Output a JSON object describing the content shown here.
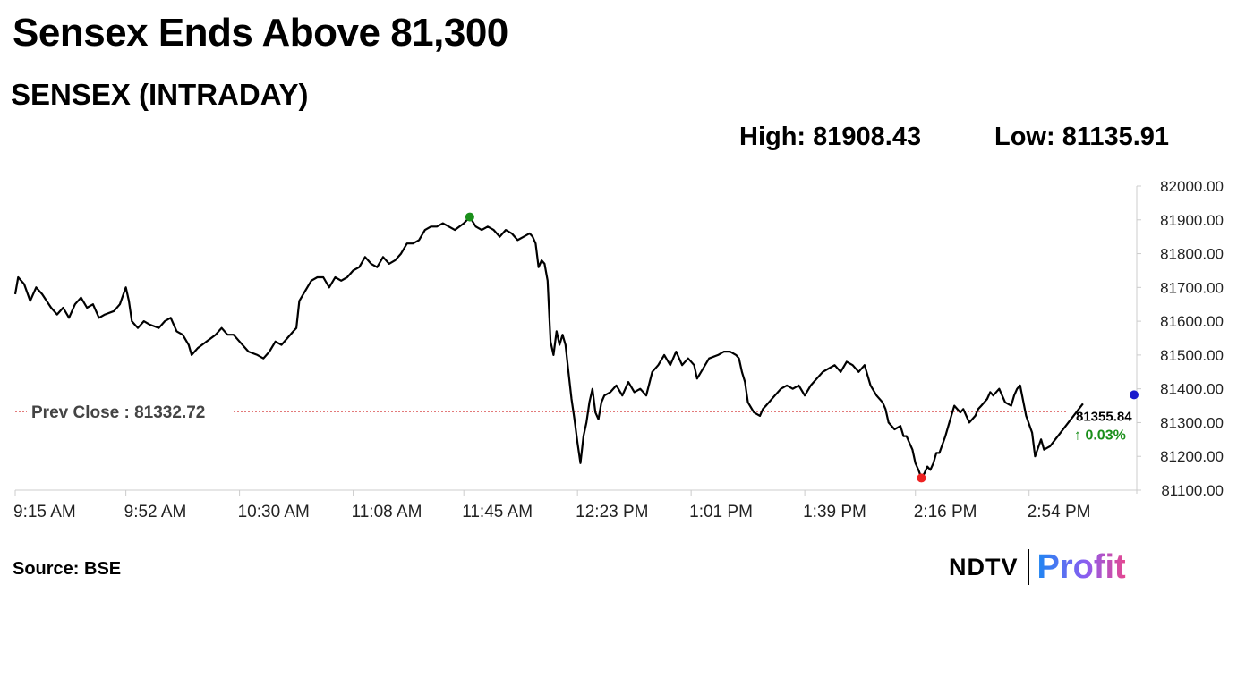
{
  "headline": "Sensex Ends Above 81,300",
  "subtitle": "SENSEX (INTRADAY)",
  "high_label": "High: 81908.43",
  "low_label": "Low: 81135.91",
  "source": "Source: BSE",
  "logo": {
    "ndtv": "NDTV",
    "profit": "Profit"
  },
  "colors": {
    "line": "#000000",
    "prev_close": "#d22b2b",
    "high_marker": "#1a8f1a",
    "low_marker": "#ee2222",
    "last_marker": "#1a1acc",
    "change_up": "#1a8f1a"
  },
  "chart_data": {
    "type": "line",
    "title": "SENSEX (INTRADAY)",
    "x_ticks": [
      "9:15 AM",
      "9:52 AM",
      "10:30 AM",
      "11:08 AM",
      "11:45 AM",
      "12:23 PM",
      "1:01 PM",
      "1:39 PM",
      "2:16 PM",
      "2:54 PM"
    ],
    "x_tick_minutes": [
      555,
      592,
      630,
      668,
      705,
      743,
      781,
      819,
      856,
      894
    ],
    "x_range_minutes": [
      555,
      930
    ],
    "y_ticks": [
      82000,
      81900,
      81800,
      81700,
      81600,
      81500,
      81400,
      81300,
      81200,
      81100
    ],
    "y_tick_labels": [
      "82000.00",
      "81900.00",
      "81800.00",
      "81700.00",
      "81600.00",
      "81500.00",
      "81400.00",
      "81300.00",
      "81200.00",
      "81100.00"
    ],
    "ylim": [
      81100,
      82000
    ],
    "prev_close": 81332.72,
    "prev_close_label": "Prev Close : 81332.72",
    "high": {
      "time": 707,
      "value": 81908.43
    },
    "low": {
      "time": 858,
      "value": 81135.91
    },
    "last": {
      "time": 912,
      "value": 81355.84,
      "label": "81355.84",
      "change_label": "↑ 0.03%"
    },
    "series": [
      {
        "points": [
          [
            555,
            81680
          ],
          [
            556,
            81730
          ],
          [
            558,
            81710
          ],
          [
            560,
            81660
          ],
          [
            562,
            81700
          ],
          [
            564,
            81680
          ],
          [
            567,
            81640
          ],
          [
            569,
            81620
          ],
          [
            571,
            81640
          ],
          [
            573,
            81610
          ],
          [
            575,
            81650
          ],
          [
            577,
            81670
          ],
          [
            579,
            81640
          ],
          [
            581,
            81650
          ],
          [
            583,
            81610
          ],
          [
            585,
            81620
          ],
          [
            588,
            81630
          ],
          [
            590,
            81650
          ],
          [
            592,
            81700
          ],
          [
            593,
            81660
          ],
          [
            594,
            81600
          ],
          [
            596,
            81580
          ],
          [
            598,
            81600
          ],
          [
            600,
            81590
          ],
          [
            603,
            81580
          ],
          [
            605,
            81600
          ],
          [
            607,
            81610
          ],
          [
            609,
            81570
          ],
          [
            611,
            81560
          ],
          [
            613,
            81530
          ],
          [
            614,
            81500
          ],
          [
            616,
            81520
          ],
          [
            619,
            81540
          ],
          [
            622,
            81560
          ],
          [
            624,
            81580
          ],
          [
            626,
            81560
          ],
          [
            628,
            81560
          ],
          [
            630,
            81540
          ],
          [
            633,
            81510
          ],
          [
            636,
            81500
          ],
          [
            638,
            81490
          ],
          [
            640,
            81510
          ],
          [
            642,
            81540
          ],
          [
            644,
            81530
          ],
          [
            646,
            81550
          ],
          [
            648,
            81570
          ],
          [
            649,
            81580
          ],
          [
            650,
            81660
          ],
          [
            652,
            81690
          ],
          [
            654,
            81720
          ],
          [
            656,
            81730
          ],
          [
            658,
            81730
          ],
          [
            660,
            81700
          ],
          [
            662,
            81730
          ],
          [
            664,
            81720
          ],
          [
            666,
            81730
          ],
          [
            668,
            81750
          ],
          [
            670,
            81760
          ],
          [
            672,
            81790
          ],
          [
            674,
            81770
          ],
          [
            676,
            81760
          ],
          [
            678,
            81790
          ],
          [
            680,
            81770
          ],
          [
            682,
            81780
          ],
          [
            684,
            81800
          ],
          [
            686,
            81830
          ],
          [
            688,
            81830
          ],
          [
            690,
            81840
          ],
          [
            692,
            81870
          ],
          [
            694,
            81880
          ],
          [
            696,
            81880
          ],
          [
            698,
            81890
          ],
          [
            700,
            81880
          ],
          [
            702,
            81870
          ],
          [
            705,
            81890
          ],
          [
            707,
            81908.43
          ],
          [
            709,
            81880
          ],
          [
            711,
            81870
          ],
          [
            713,
            81880
          ],
          [
            715,
            81870
          ],
          [
            717,
            81850
          ],
          [
            719,
            81870
          ],
          [
            721,
            81860
          ],
          [
            723,
            81840
          ],
          [
            725,
            81850
          ],
          [
            727,
            81860
          ],
          [
            728,
            81850
          ],
          [
            729,
            81830
          ],
          [
            730,
            81760
          ],
          [
            731,
            81780
          ],
          [
            732,
            81770
          ],
          [
            733,
            81720
          ],
          [
            734,
            81540
          ],
          [
            735,
            81500
          ],
          [
            736,
            81570
          ],
          [
            737,
            81530
          ],
          [
            738,
            81560
          ],
          [
            739,
            81530
          ],
          [
            740,
            81450
          ],
          [
            741,
            81370
          ],
          [
            742,
            81310
          ],
          [
            743,
            81240
          ],
          [
            744,
            81180
          ],
          [
            745,
            81260
          ],
          [
            746,
            81300
          ],
          [
            747,
            81360
          ],
          [
            748,
            81400
          ],
          [
            749,
            81330
          ],
          [
            750,
            81310
          ],
          [
            751,
            81360
          ],
          [
            752,
            81380
          ],
          [
            754,
            81390
          ],
          [
            756,
            81410
          ],
          [
            758,
            81380
          ],
          [
            760,
            81420
          ],
          [
            762,
            81390
          ],
          [
            764,
            81400
          ],
          [
            766,
            81380
          ],
          [
            768,
            81450
          ],
          [
            770,
            81470
          ],
          [
            772,
            81500
          ],
          [
            774,
            81470
          ],
          [
            776,
            81510
          ],
          [
            778,
            81470
          ],
          [
            780,
            81490
          ],
          [
            782,
            81470
          ],
          [
            783,
            81430
          ],
          [
            785,
            81460
          ],
          [
            787,
            81490
          ],
          [
            790,
            81500
          ],
          [
            792,
            81510
          ],
          [
            794,
            81510
          ],
          [
            796,
            81500
          ],
          [
            797,
            81490
          ],
          [
            798,
            81450
          ],
          [
            799,
            81420
          ],
          [
            800,
            81360
          ],
          [
            802,
            81330
          ],
          [
            804,
            81320
          ],
          [
            805,
            81340
          ],
          [
            806,
            81350
          ],
          [
            807,
            81360
          ],
          [
            809,
            81380
          ],
          [
            811,
            81400
          ],
          [
            813,
            81410
          ],
          [
            815,
            81400
          ],
          [
            817,
            81410
          ],
          [
            819,
            81380
          ],
          [
            821,
            81410
          ],
          [
            823,
            81430
          ],
          [
            825,
            81450
          ],
          [
            827,
            81460
          ],
          [
            829,
            81470
          ],
          [
            831,
            81450
          ],
          [
            833,
            81480
          ],
          [
            835,
            81470
          ],
          [
            837,
            81450
          ],
          [
            839,
            81470
          ],
          [
            841,
            81410
          ],
          [
            843,
            81380
          ],
          [
            845,
            81360
          ],
          [
            846,
            81340
          ],
          [
            847,
            81300
          ],
          [
            849,
            81280
          ],
          [
            851,
            81290
          ],
          [
            852,
            81260
          ],
          [
            853,
            81260
          ],
          [
            855,
            81220
          ],
          [
            856,
            81180
          ],
          [
            857,
            81160
          ],
          [
            858,
            81135.91
          ],
          [
            859,
            81150
          ],
          [
            860,
            81170
          ],
          [
            861,
            81160
          ],
          [
            862,
            81180
          ],
          [
            863,
            81210
          ],
          [
            864,
            81210
          ],
          [
            866,
            81260
          ],
          [
            867,
            81290
          ],
          [
            868,
            81320
          ],
          [
            869,
            81350
          ],
          [
            871,
            81330
          ],
          [
            872,
            81340
          ],
          [
            874,
            81300
          ],
          [
            876,
            81320
          ],
          [
            877,
            81340
          ],
          [
            878,
            81350
          ],
          [
            880,
            81370
          ],
          [
            881,
            81390
          ],
          [
            882,
            81380
          ],
          [
            884,
            81400
          ],
          [
            886,
            81360
          ],
          [
            888,
            81350
          ],
          [
            889,
            81380
          ],
          [
            890,
            81400
          ],
          [
            891,
            81410
          ],
          [
            893,
            81320
          ],
          [
            895,
            81270
          ],
          [
            896,
            81200
          ],
          [
            898,
            81250
          ],
          [
            899,
            81220
          ],
          [
            901,
            81230
          ],
          [
            912,
            81355.84
          ]
        ]
      }
    ]
  }
}
